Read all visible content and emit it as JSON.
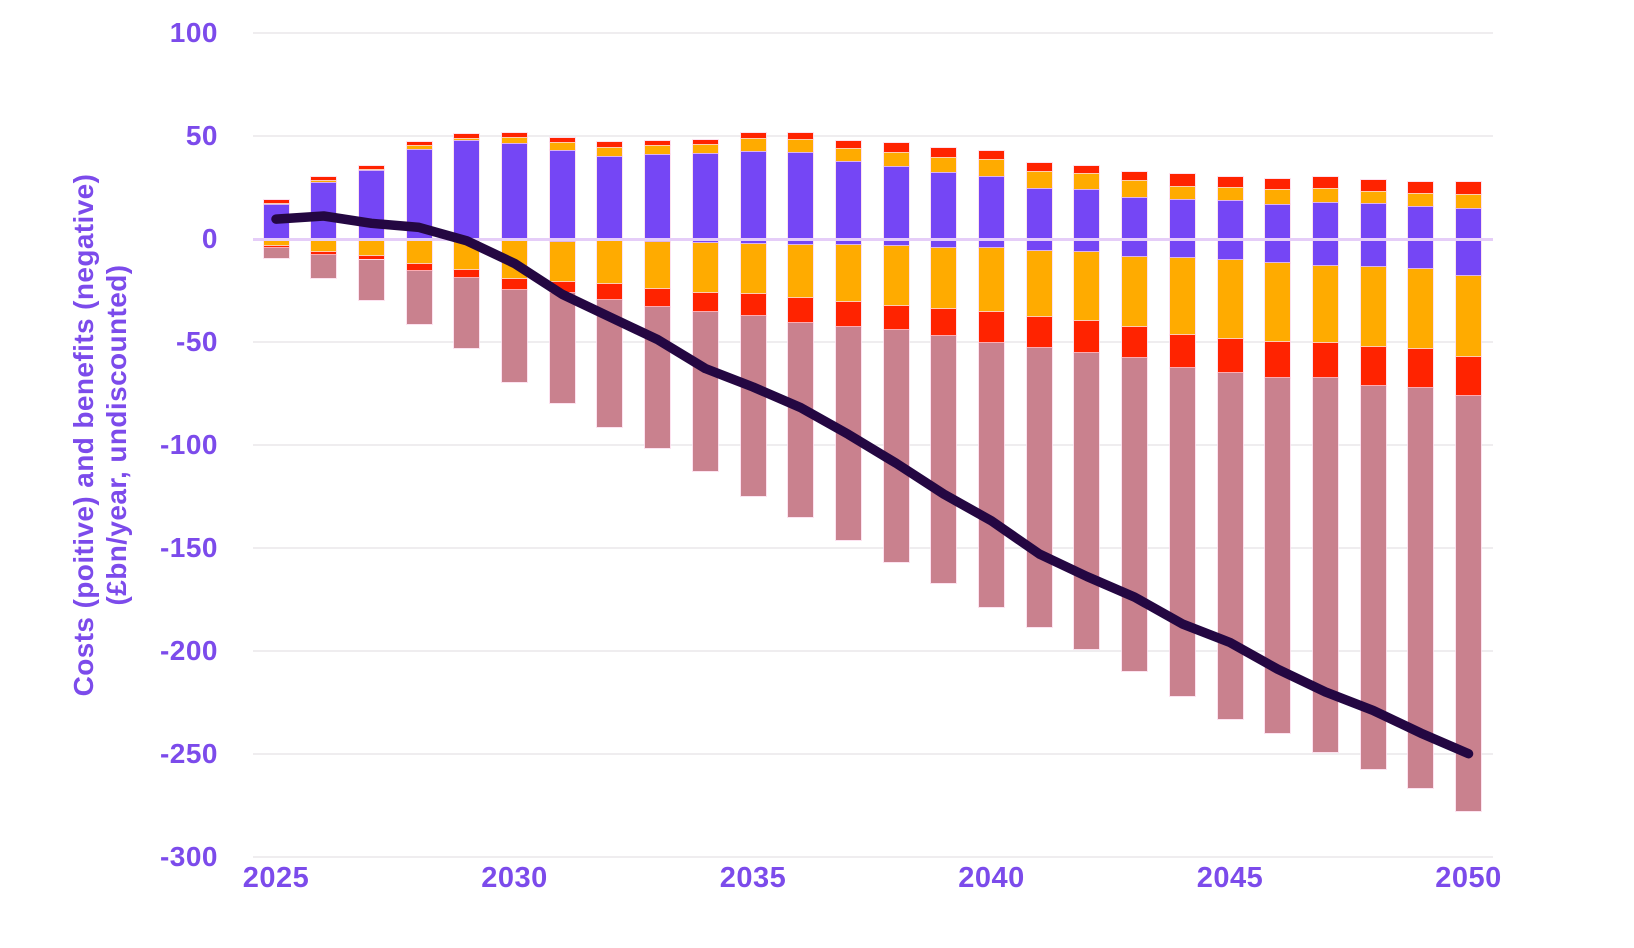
{
  "chart_data": {
    "type": "bar-line-combo",
    "title": "",
    "ylabel_line1": "Costs (poitive) and benefits (negative)",
    "ylabel_line2": "(£bn/year, undiscounted)",
    "years": [
      2025,
      2026,
      2027,
      2028,
      2029,
      2030,
      2031,
      2032,
      2033,
      2034,
      2035,
      2036,
      2037,
      2038,
      2039,
      2040,
      2041,
      2042,
      2043,
      2044,
      2045,
      2046,
      2047,
      2048,
      2049,
      2050
    ],
    "x_tick_labels": [
      "2025",
      "2030",
      "2035",
      "2040",
      "2045",
      "2050"
    ],
    "y_ticks": [
      100,
      50,
      0,
      -50,
      -100,
      -150,
      -200,
      -250,
      -300
    ],
    "ylim": [
      -300,
      100
    ],
    "grid": "horizontal",
    "legend": "none",
    "series_positive": [
      {
        "name": "costs-purple",
        "color": "#7546f5",
        "values": [
          16.8,
          27.5,
          33.2,
          43.4,
          47.9,
          46.3,
          43.1,
          40.1,
          41.1,
          41.4,
          42.6,
          42.1,
          37.9,
          35.3,
          32.5,
          30.6,
          24.5,
          24.0,
          20.4,
          19.3,
          18.8,
          16.8,
          18.0,
          17.2,
          15.9,
          15.0
        ]
      },
      {
        "name": "costs-amber",
        "color": "#ffab00",
        "values": [
          0.5,
          0.8,
          0.8,
          1.9,
          1.1,
          2.9,
          4.0,
          4.6,
          4.4,
          4.4,
          6.1,
          6.1,
          6.0,
          6.9,
          7.3,
          7.9,
          8.4,
          7.7,
          8.1,
          6.3,
          6.1,
          7.2,
          6.5,
          6.1,
          6.4,
          6.7
        ]
      },
      {
        "name": "costs-red",
        "color": "#ff2300",
        "values": [
          1.5,
          1.8,
          1.3,
          1.5,
          1.7,
          2.0,
          1.9,
          2.2,
          1.9,
          2.1,
          2.8,
          3.3,
          3.5,
          4.1,
          4.1,
          4.1,
          3.7,
          3.7,
          4.0,
          5.6,
          5.2,
          4.8,
          5.3,
          5.2,
          5.4,
          5.7
        ]
      }
    ],
    "series_negative_magnitudes": [
      {
        "name": "benefits-purple",
        "color": "#7546f5",
        "values": [
          0,
          0,
          0,
          0,
          0.3,
          1.0,
          1.4,
          1.3,
          1.6,
          1.9,
          2.6,
          3.1,
          3.1,
          3.4,
          4.4,
          4.7,
          6.0,
          6.3,
          8.7,
          9.2,
          10.3,
          11.7,
          13.1,
          13.6,
          14.9,
          18.0
        ]
      },
      {
        "name": "benefits-amber",
        "color": "#ffab00",
        "values": [
          3.5,
          6.6,
          8.5,
          12.4,
          14.9,
          18.7,
          19.5,
          20.8,
          23.0,
          24.3,
          24.4,
          25.8,
          27.5,
          29.3,
          29.9,
          30.7,
          32.2,
          33.5,
          34.0,
          37.5,
          38.5,
          38.5,
          37.4,
          39.2,
          38.8,
          39.5
        ]
      },
      {
        "name": "benefits-red",
        "color": "#ff2300",
        "values": [
          1.2,
          1.3,
          1.6,
          3.1,
          3.7,
          5.2,
          5.6,
          7.7,
          8.7,
          9.5,
          10.5,
          11.9,
          12.1,
          11.6,
          12.9,
          15.1,
          15.0,
          15.9,
          15.4,
          16.1,
          16.6,
          17.2,
          16.9,
          18.5,
          18.8,
          19.0
        ]
      },
      {
        "name": "benefits-rose",
        "color": "#c9818e",
        "values": [
          4.8,
          11.0,
          19.7,
          26.1,
          34.3,
          44.5,
          53.4,
          61.5,
          68.4,
          77.1,
          87.3,
          94.1,
          103.6,
          112.5,
          120.1,
          128.1,
          135.5,
          143.7,
          151.6,
          159.4,
          167.7,
          172.6,
          181.6,
          186.1,
          194.3,
          201.5
        ]
      }
    ],
    "line": {
      "name": "net-total",
      "color": "#240742",
      "values": [
        9.5,
        11,
        7.5,
        5.5,
        -1,
        -12,
        -27,
        -38,
        -49,
        -63,
        -72,
        -82,
        -95,
        -109,
        -124,
        -137,
        -153,
        -164,
        -174,
        -187,
        -196,
        -209,
        -220,
        -229,
        -240,
        -250
      ]
    },
    "colors": {
      "accent_label": "#7c4beb",
      "gridline": "#efedef",
      "zero_line": "#e5cdf8",
      "background": "#ffffff"
    }
  }
}
